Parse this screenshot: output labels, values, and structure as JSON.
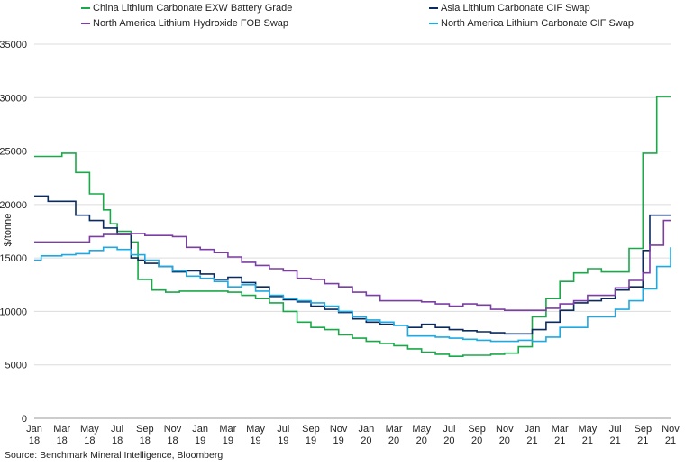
{
  "source": "Source: Benchmark Mineral Intelligence, Bloomberg",
  "legend": [
    {
      "label": "China Lithium Carbonate EXW Battery Grade",
      "color": "#1ba84a"
    },
    {
      "label": "Asia Lithium Carbonate CIF Swap",
      "color": "#0b2a5e"
    },
    {
      "label": "North America Lithium Hydroxide FOB Swap",
      "color": "#7b3fa3"
    },
    {
      "label": "North America Lithium Carbonate CIF Swap",
      "color": "#1fa9e1"
    }
  ],
  "chart_data": {
    "type": "line",
    "step": true,
    "ylabel": "$/tonne",
    "ylim": [
      0,
      35000
    ],
    "yticks": [
      0,
      5000,
      10000,
      15000,
      20000,
      25000,
      30000,
      35000
    ],
    "xlim": [
      0,
      46
    ],
    "xticks": [
      {
        "x": 0,
        "label": [
          "Jan",
          "18"
        ]
      },
      {
        "x": 2,
        "label": [
          "Mar",
          "18"
        ]
      },
      {
        "x": 4,
        "label": [
          "May",
          "18"
        ]
      },
      {
        "x": 6,
        "label": [
          "Jul",
          "18"
        ]
      },
      {
        "x": 8,
        "label": [
          "Sep",
          "18"
        ]
      },
      {
        "x": 10,
        "label": [
          "Nov",
          "18"
        ]
      },
      {
        "x": 12,
        "label": [
          "Jan",
          "19"
        ]
      },
      {
        "x": 14,
        "label": [
          "Mar",
          "19"
        ]
      },
      {
        "x": 16,
        "label": [
          "May",
          "19"
        ]
      },
      {
        "x": 18,
        "label": [
          "Jul",
          "19"
        ]
      },
      {
        "x": 20,
        "label": [
          "Sep",
          "19"
        ]
      },
      {
        "x": 22,
        "label": [
          "Nov",
          "19"
        ]
      },
      {
        "x": 24,
        "label": [
          "Jan",
          "20"
        ]
      },
      {
        "x": 26,
        "label": [
          "Mar",
          "20"
        ]
      },
      {
        "x": 28,
        "label": [
          "May",
          "20"
        ]
      },
      {
        "x": 30,
        "label": [
          "Jul",
          "20"
        ]
      },
      {
        "x": 32,
        "label": [
          "Sep",
          "20"
        ]
      },
      {
        "x": 34,
        "label": [
          "Nov",
          "20"
        ]
      },
      {
        "x": 36,
        "label": [
          "Jan",
          "21"
        ]
      },
      {
        "x": 38,
        "label": [
          "Mar",
          "21"
        ]
      },
      {
        "x": 40,
        "label": [
          "May",
          "21"
        ]
      },
      {
        "x": 42,
        "label": [
          "Jul",
          "21"
        ]
      },
      {
        "x": 44,
        "label": [
          "Sep",
          "21"
        ]
      },
      {
        "x": 46,
        "label": [
          "Nov",
          "21"
        ]
      }
    ],
    "grid": "horizontal",
    "legend_position": "top",
    "series": [
      {
        "name": "China Lithium Carbonate EXW Battery Grade",
        "color": "#1ba84a",
        "points": [
          [
            0,
            24500
          ],
          [
            1,
            24500
          ],
          [
            2,
            24800
          ],
          [
            3,
            23000
          ],
          [
            4,
            21000
          ],
          [
            5,
            19500
          ],
          [
            5.5,
            18200
          ],
          [
            6,
            17500
          ],
          [
            7,
            16500
          ],
          [
            7.5,
            13000
          ],
          [
            8.5,
            12000
          ],
          [
            9.5,
            11800
          ],
          [
            10.5,
            11900
          ],
          [
            12,
            11900
          ],
          [
            13,
            11900
          ],
          [
            14,
            11800
          ],
          [
            15,
            11500
          ],
          [
            16,
            11200
          ],
          [
            17,
            10800
          ],
          [
            18,
            10000
          ],
          [
            19,
            9000
          ],
          [
            20,
            8500
          ],
          [
            21,
            8300
          ],
          [
            22,
            7800
          ],
          [
            23,
            7500
          ],
          [
            24,
            7200
          ],
          [
            25,
            7000
          ],
          [
            26,
            6800
          ],
          [
            27,
            6500
          ],
          [
            28,
            6200
          ],
          [
            29,
            6000
          ],
          [
            30,
            5800
          ],
          [
            31,
            5900
          ],
          [
            32,
            5900
          ],
          [
            33,
            6000
          ],
          [
            34,
            6100
          ],
          [
            35,
            6700
          ],
          [
            36,
            9500
          ],
          [
            37,
            11200
          ],
          [
            38,
            12800
          ],
          [
            39,
            13600
          ],
          [
            40,
            14000
          ],
          [
            41,
            13700
          ],
          [
            42,
            13700
          ],
          [
            43,
            15900
          ],
          [
            44,
            24800
          ],
          [
            45,
            30100
          ],
          [
            46,
            30100
          ]
        ]
      },
      {
        "name": "Asia Lithium Carbonate CIF Swap",
        "color": "#0b2a5e",
        "points": [
          [
            0,
            20800
          ],
          [
            1,
            20300
          ],
          [
            2,
            20300
          ],
          [
            3,
            19000
          ],
          [
            4,
            18500
          ],
          [
            5,
            17800
          ],
          [
            6,
            17200
          ],
          [
            7,
            15000
          ],
          [
            7.5,
            14800
          ],
          [
            8,
            14500
          ],
          [
            9,
            14200
          ],
          [
            10,
            13700
          ],
          [
            11,
            13800
          ],
          [
            12,
            13500
          ],
          [
            13,
            13000
          ],
          [
            14,
            13200
          ],
          [
            15,
            12700
          ],
          [
            16,
            12300
          ],
          [
            17,
            11400
          ],
          [
            18,
            11100
          ],
          [
            19,
            10900
          ],
          [
            20,
            10500
          ],
          [
            21,
            10200
          ],
          [
            22,
            9900
          ],
          [
            23,
            9300
          ],
          [
            24,
            9000
          ],
          [
            25,
            8800
          ],
          [
            26,
            8700
          ],
          [
            27,
            8500
          ],
          [
            28,
            8800
          ],
          [
            29,
            8500
          ],
          [
            30,
            8300
          ],
          [
            31,
            8200
          ],
          [
            32,
            8100
          ],
          [
            33,
            8000
          ],
          [
            34,
            7900
          ],
          [
            35,
            7900
          ],
          [
            36,
            8300
          ],
          [
            37,
            9000
          ],
          [
            38,
            10100
          ],
          [
            39,
            10800
          ],
          [
            40,
            11000
          ],
          [
            41,
            11200
          ],
          [
            42,
            12000
          ],
          [
            43,
            12300
          ],
          [
            44,
            15700
          ],
          [
            44.5,
            19000
          ],
          [
            46,
            19000
          ]
        ]
      },
      {
        "name": "North America Lithium Hydroxide FOB Swap",
        "color": "#7b3fa3",
        "points": [
          [
            0,
            16500
          ],
          [
            1,
            16500
          ],
          [
            2,
            16500
          ],
          [
            3,
            16500
          ],
          [
            4,
            17000
          ],
          [
            5,
            17200
          ],
          [
            6,
            17200
          ],
          [
            7,
            17300
          ],
          [
            8,
            17100
          ],
          [
            9,
            17100
          ],
          [
            10,
            17000
          ],
          [
            11,
            16000
          ],
          [
            12,
            15800
          ],
          [
            13,
            15500
          ],
          [
            14,
            15100
          ],
          [
            15,
            14600
          ],
          [
            16,
            14300
          ],
          [
            17,
            14000
          ],
          [
            18,
            13800
          ],
          [
            19,
            13100
          ],
          [
            20,
            13000
          ],
          [
            21,
            12600
          ],
          [
            22,
            12300
          ],
          [
            23,
            11800
          ],
          [
            24,
            11500
          ],
          [
            25,
            11000
          ],
          [
            26,
            11000
          ],
          [
            27,
            11000
          ],
          [
            28,
            10900
          ],
          [
            29,
            10700
          ],
          [
            30,
            10500
          ],
          [
            31,
            10700
          ],
          [
            32,
            10600
          ],
          [
            33,
            10200
          ],
          [
            34,
            10100
          ],
          [
            35,
            10100
          ],
          [
            36,
            10100
          ],
          [
            37,
            10300
          ],
          [
            38,
            10700
          ],
          [
            39,
            11000
          ],
          [
            40,
            11500
          ],
          [
            41,
            11500
          ],
          [
            42,
            12200
          ],
          [
            43,
            12900
          ],
          [
            44,
            13600
          ],
          [
            44.5,
            16200
          ],
          [
            45.5,
            18500
          ],
          [
            46,
            18500
          ]
        ]
      },
      {
        "name": "North America Lithium Carbonate CIF Swap",
        "color": "#1fa9e1",
        "points": [
          [
            0,
            14800
          ],
          [
            0.5,
            15200
          ],
          [
            2,
            15300
          ],
          [
            3,
            15400
          ],
          [
            4,
            15700
          ],
          [
            5,
            16000
          ],
          [
            6,
            15800
          ],
          [
            7,
            15300
          ],
          [
            8,
            14800
          ],
          [
            9,
            14200
          ],
          [
            10,
            13800
          ],
          [
            11,
            13300
          ],
          [
            12,
            13100
          ],
          [
            13,
            12800
          ],
          [
            14,
            12300
          ],
          [
            15,
            12500
          ],
          [
            16,
            11900
          ],
          [
            17,
            11500
          ],
          [
            18,
            11200
          ],
          [
            19,
            11000
          ],
          [
            20,
            10800
          ],
          [
            21,
            10500
          ],
          [
            22,
            10000
          ],
          [
            23,
            9500
          ],
          [
            24,
            9200
          ],
          [
            25,
            9000
          ],
          [
            26,
            8700
          ],
          [
            27,
            7700
          ],
          [
            28,
            7700
          ],
          [
            29,
            7600
          ],
          [
            30,
            7500
          ],
          [
            31,
            7400
          ],
          [
            32,
            7300
          ],
          [
            33,
            7200
          ],
          [
            34,
            7200
          ],
          [
            35,
            7300
          ],
          [
            36,
            7200
          ],
          [
            37,
            7600
          ],
          [
            38,
            8500
          ],
          [
            39,
            8500
          ],
          [
            40,
            9500
          ],
          [
            41,
            9500
          ],
          [
            42,
            10200
          ],
          [
            43,
            11000
          ],
          [
            44,
            12100
          ],
          [
            45,
            14200
          ],
          [
            46,
            16000
          ]
        ]
      }
    ]
  }
}
